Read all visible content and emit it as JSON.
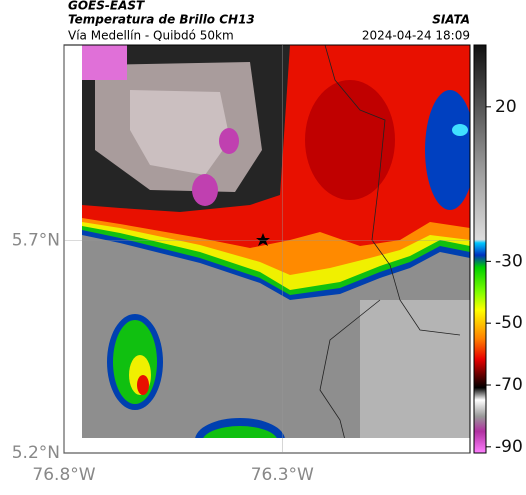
{
  "header": {
    "source": "GOES-EAST",
    "title": "Temperatura de Brillo CH13",
    "subtitle": "Vía Medellín - Quibdó 50km",
    "org": "SIATA",
    "datetime": "2024-04-24 18:09"
  },
  "map": {
    "xlim": [
      -76.8,
      -75.87
    ],
    "ylim": [
      5.2,
      6.16
    ],
    "xticks": [
      {
        "value": -76.8,
        "label": "76.8°W"
      },
      {
        "value": -76.3,
        "label": "76.3°W"
      }
    ],
    "yticks": [
      {
        "value": 5.7,
        "label": "5.7°N"
      },
      {
        "value": 5.2,
        "label": "5.2°N"
      }
    ],
    "grid": true
  },
  "colorbar": {
    "lim": [
      -92,
      40
    ],
    "ticks": [
      20,
      -30,
      -50,
      -70,
      -90
    ]
  }
}
